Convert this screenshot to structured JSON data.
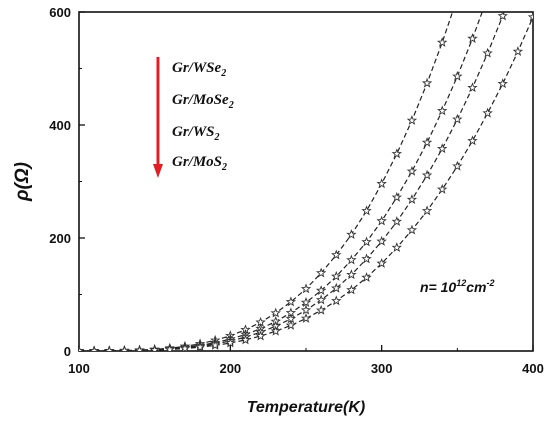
{
  "chart_data": {
    "type": "line",
    "xlabel": "Temperature(K)",
    "ylabel": "ρ(Ω)",
    "xlim": [
      100,
      400
    ],
    "ylim": [
      0,
      600
    ],
    "xticks": [
      100,
      200,
      300,
      400
    ],
    "yticks": [
      0,
      200,
      400,
      600
    ],
    "grid": false,
    "legend_placement": "top-left",
    "legend_order_arrow_color": "#e02020",
    "line_style": "dashed",
    "marker": "star",
    "annotation": {
      "prefix": "n= 10",
      "exponent": "12",
      "unit": "cm",
      "unit_exponent": "-2"
    },
    "series": [
      {
        "name": "Gr/WSe",
        "name_subscript": "2",
        "x": [
          100,
          110,
          120,
          130,
          140,
          150,
          160,
          170,
          180,
          190,
          200,
          210,
          220,
          230,
          240,
          250,
          260,
          270,
          280,
          290,
          300,
          310,
          320,
          330,
          340,
          350
        ],
        "y": [
          0,
          0.1,
          0.3,
          0.7,
          1.5,
          2.8,
          5,
          8.2,
          12.7,
          18.9,
          27,
          37.6,
          50.8,
          67.1,
          86.9,
          110,
          138,
          170,
          206,
          248,
          296,
          349,
          408,
          474,
          546,
          625
        ]
      },
      {
        "name": "Gr/MoSe",
        "name_subscript": "2",
        "x": [
          100,
          110,
          120,
          130,
          140,
          150,
          160,
          170,
          180,
          190,
          200,
          210,
          220,
          230,
          240,
          250,
          260,
          270,
          280,
          290,
          300,
          310,
          320,
          330,
          340,
          350,
          360,
          370
        ],
        "y": [
          0,
          0.1,
          0.2,
          0.6,
          1.2,
          2.2,
          3.9,
          6.4,
          9.9,
          14.7,
          21,
          29.2,
          39.5,
          52.2,
          67.5,
          85.8,
          107,
          132,
          161,
          193,
          230,
          272,
          318,
          369,
          425,
          486,
          553,
          626
        ]
      },
      {
        "name": "Gr/WS",
        "name_subscript": "2",
        "x": [
          100,
          110,
          120,
          130,
          140,
          150,
          160,
          170,
          180,
          190,
          200,
          210,
          220,
          230,
          240,
          250,
          260,
          270,
          280,
          290,
          300,
          310,
          320,
          330,
          340,
          350,
          360,
          370,
          380,
          390
        ],
        "y": [
          0,
          0.1,
          0.2,
          0.5,
          1.0,
          1.9,
          3.3,
          5.4,
          8.4,
          12.4,
          17.7,
          24.6,
          33.3,
          43.9,
          56.9,
          72.3,
          90.3,
          111,
          135,
          163,
          194,
          229,
          268,
          311,
          358,
          410,
          466,
          527,
          593,
          664
        ]
      },
      {
        "name": "Gr/MoS",
        "name_subscript": "2",
        "x": [
          100,
          110,
          120,
          130,
          140,
          150,
          160,
          170,
          180,
          190,
          200,
          210,
          220,
          230,
          240,
          250,
          260,
          270,
          280,
          290,
          300,
          310,
          320,
          330,
          340,
          350,
          360,
          370,
          380,
          390,
          400
        ],
        "y": [
          0,
          0.1,
          0.2,
          0.4,
          0.8,
          1.5,
          2.6,
          4.3,
          6.7,
          9.9,
          14.1,
          19.6,
          26.5,
          35,
          45.3,
          57.6,
          72,
          88.8,
          108,
          130,
          155,
          183,
          214,
          248,
          286,
          327,
          372,
          421,
          473,
          530,
          591
        ]
      }
    ]
  }
}
